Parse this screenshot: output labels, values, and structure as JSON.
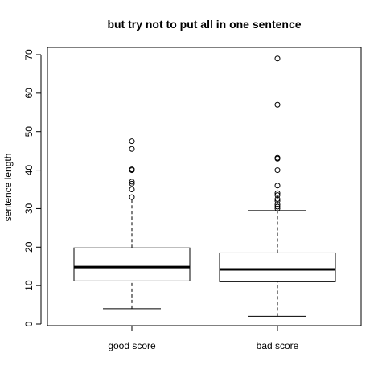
{
  "chart_data": {
    "type": "boxplot",
    "title": "but try not to put all in one sentence",
    "xlabel": "",
    "ylabel": "sentence length",
    "ylim": [
      0,
      70
    ],
    "yticks": [
      0,
      10,
      20,
      30,
      40,
      50,
      60,
      70
    ],
    "categories": [
      "good score",
      "bad score"
    ],
    "boxes": [
      {
        "label": "good score",
        "lower_whisker": 4,
        "q1": 11.2,
        "median": 14.8,
        "q3": 19.8,
        "upper_whisker": 32.5,
        "outliers": [
          33,
          35,
          36.5,
          37,
          40,
          40.2,
          45.5,
          47.5
        ]
      },
      {
        "label": "bad score",
        "lower_whisker": 2,
        "q1": 11.0,
        "median": 14.2,
        "q3": 18.5,
        "upper_whisker": 29.5,
        "outliers": [
          30,
          30.5,
          31,
          32,
          32.5,
          33.5,
          34,
          36,
          40,
          43,
          43.2,
          57,
          69
        ]
      }
    ]
  }
}
